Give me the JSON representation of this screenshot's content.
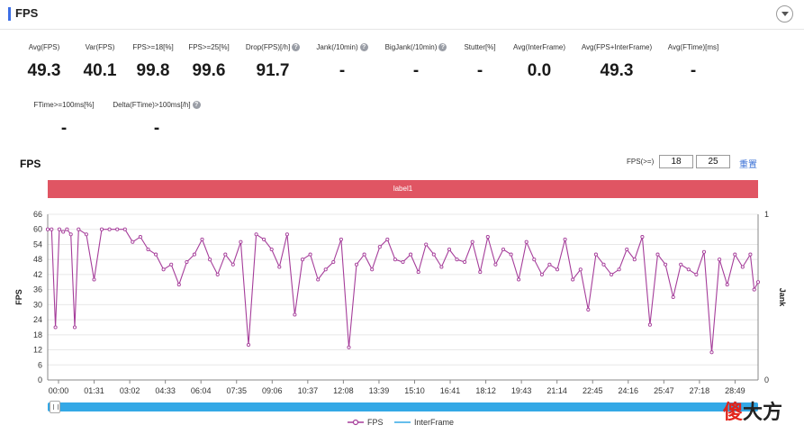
{
  "header": {
    "title": "FPS"
  },
  "metrics": [
    {
      "label": "Avg(FPS)",
      "value": "49.3",
      "help": false
    },
    {
      "label": "Var(FPS)",
      "value": "40.1",
      "help": false
    },
    {
      "label": "FPS>=18[%]",
      "value": "99.8",
      "help": false
    },
    {
      "label": "FPS>=25[%]",
      "value": "99.6",
      "help": false
    },
    {
      "label": "Drop(FPS)[/h]",
      "value": "91.7",
      "help": true
    },
    {
      "label": "Jank(/10min)",
      "value": "-",
      "help": true
    },
    {
      "label": "BigJank(/10min)",
      "value": "-",
      "help": true
    },
    {
      "label": "Stutter[%]",
      "value": "-",
      "help": false
    },
    {
      "label": "Avg(InterFrame)",
      "value": "0.0",
      "help": false
    },
    {
      "label": "Avg(FPS+InterFrame)",
      "value": "49.3",
      "help": false
    },
    {
      "label": "Avg(FTime)[ms]",
      "value": "-",
      "help": false
    },
    {
      "label": "FTime>=100ms[%]",
      "value": "-",
      "help": false
    },
    {
      "label": "Delta(FTime)>100ms[/h]",
      "value": "-",
      "help": true
    }
  ],
  "chart_section": {
    "title": "FPS",
    "threshold_label": "FPS(>=)",
    "threshold_1": "18",
    "threshold_2": "25",
    "reset_label": "重置",
    "band_label": "label1"
  },
  "legend": {
    "fps": "FPS",
    "interframe": "InterFrame"
  },
  "watermark": {
    "chars": [
      "傻",
      "大",
      "方"
    ],
    "colors": [
      "#e2231a",
      "#222222",
      "#222222"
    ]
  },
  "colors": {
    "fps_line": "#a53d9a",
    "interframe_line": "#33a8e6",
    "band": "#e05563",
    "accent": "#3c6ee6"
  },
  "chart_data": {
    "type": "line",
    "title": "",
    "ylabel": "FPS",
    "ylabel_right": "Jank",
    "ylim": [
      0,
      66
    ],
    "yticks": [
      "0",
      "6",
      "12",
      "18",
      "24",
      "30",
      "36",
      "42",
      "48",
      "54",
      "60",
      "66"
    ],
    "ylim_right": [
      0,
      1
    ],
    "yticks_right": [
      "0",
      "1"
    ],
    "x_ticks": [
      "00:00",
      "01:31",
      "03:02",
      "04:33",
      "06:04",
      "07:35",
      "09:06",
      "10:37",
      "12:08",
      "13:39",
      "15:10",
      "16:41",
      "18:12",
      "19:43",
      "21:14",
      "22:45",
      "24:16",
      "25:47",
      "27:18",
      "28:49"
    ],
    "duration_seconds": 1840,
    "series": [
      {
        "name": "FPS",
        "t": [
          0,
          10,
          20,
          30,
          40,
          50,
          60,
          70,
          80,
          100,
          120,
          140,
          160,
          180,
          200,
          220,
          240,
          260,
          280,
          300,
          320,
          340,
          360,
          380,
          400,
          420,
          440,
          460,
          480,
          500,
          520,
          540,
          560,
          580,
          600,
          620,
          640,
          660,
          680,
          700,
          720,
          740,
          760,
          780,
          800,
          820,
          840,
          860,
          880,
          900,
          920,
          940,
          960,
          980,
          1000,
          1020,
          1040,
          1060,
          1080,
          1100,
          1120,
          1140,
          1160,
          1180,
          1200,
          1220,
          1240,
          1260,
          1280,
          1300,
          1320,
          1340,
          1360,
          1380,
          1400,
          1420,
          1440,
          1460,
          1480,
          1500,
          1520,
          1540,
          1560,
          1580,
          1600,
          1620,
          1640,
          1660,
          1680,
          1700,
          1720,
          1740,
          1760,
          1780,
          1800,
          1820,
          1830,
          1840
        ],
        "values": [
          60,
          60,
          21,
          60,
          59,
          60,
          58,
          21,
          60,
          58,
          40,
          60,
          60,
          60,
          60,
          55,
          57,
          52,
          50,
          44,
          46,
          38,
          47,
          50,
          56,
          48,
          42,
          50,
          46,
          55,
          14,
          58,
          56,
          52,
          45,
          58,
          26,
          48,
          50,
          40,
          44,
          47,
          56,
          13,
          46,
          50,
          44,
          53,
          56,
          48,
          47,
          50,
          43,
          54,
          50,
          45,
          52,
          48,
          47,
          55,
          43,
          57,
          46,
          52,
          50,
          40,
          55,
          48,
          42,
          46,
          44,
          56,
          40,
          44,
          28,
          50,
          46,
          42,
          44,
          52,
          48,
          57,
          22,
          50,
          46,
          33,
          46,
          44,
          42,
          51,
          11,
          48,
          38,
          50,
          45,
          50,
          36,
          39
        ]
      },
      {
        "name": "InterFrame",
        "values": []
      }
    ],
    "legend_position": "bottom-center",
    "grid": "horizontal"
  }
}
